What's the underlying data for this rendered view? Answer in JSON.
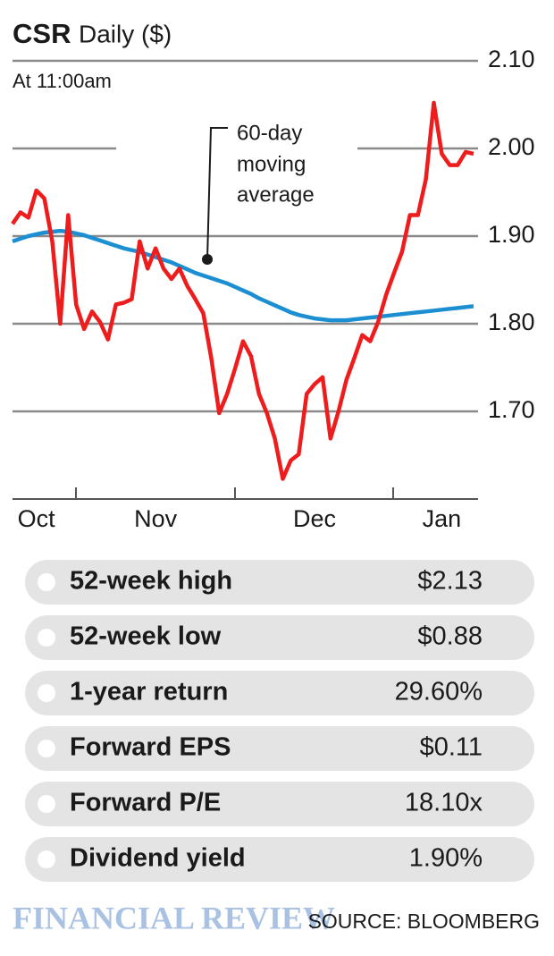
{
  "chart_data": {
    "type": "line",
    "title": "CSR",
    "title_suffix": "Daily ($)",
    "subtitle": "At 11:00am",
    "annotation": [
      "60-day",
      "moving",
      "average"
    ],
    "categories": [
      null,
      null,
      null,
      "Oct",
      null,
      null,
      null,
      null,
      null,
      null,
      null,
      null,
      null,
      null,
      null,
      null,
      null,
      null,
      "Nov",
      null,
      null,
      null,
      null,
      null,
      null,
      null,
      null,
      null,
      null,
      null,
      null,
      null,
      null,
      null,
      null,
      null,
      null,
      null,
      "Dec",
      null,
      null,
      null,
      null,
      null,
      null,
      null,
      null,
      null,
      null,
      null,
      null,
      null,
      null,
      null,
      "Jan",
      null,
      null,
      null,
      null
    ],
    "series": [
      {
        "color": "#ee1c1c",
        "values": [
          1.914,
          1.927,
          1.921,
          1.952,
          1.943,
          1.894,
          1.8,
          1.924,
          1.822,
          1.794,
          1.814,
          1.802,
          1.782,
          1.822,
          1.824,
          1.828,
          1.894,
          1.863,
          1.886,
          1.863,
          1.851,
          1.863,
          1.843,
          1.828,
          1.812,
          1.761,
          1.698,
          1.72,
          1.749,
          1.78,
          1.763,
          1.72,
          1.698,
          1.669,
          1.623,
          1.644,
          1.651,
          1.72,
          1.731,
          1.739,
          1.669,
          1.7,
          1.736,
          1.761,
          1.787,
          1.78,
          1.802,
          1.833,
          1.858,
          1.882,
          1.924,
          1.924,
          1.965,
          2.052,
          1.994,
          1.981,
          1.981,
          1.996,
          1.994
        ]
      },
      {
        "color": "#1b8fd2",
        "values": [
          1.894,
          1.897,
          1.9,
          1.902,
          1.904,
          1.905,
          1.906,
          1.905,
          1.903,
          1.901,
          1.898,
          1.895,
          1.892,
          1.889,
          1.886,
          1.884,
          1.882,
          1.879,
          1.876,
          1.873,
          1.87,
          1.866,
          1.862,
          1.858,
          1.855,
          1.852,
          1.849,
          1.846,
          1.842,
          1.838,
          1.834,
          1.829,
          1.825,
          1.821,
          1.817,
          1.813,
          1.81,
          1.808,
          1.806,
          1.805,
          1.804,
          1.804,
          1.804,
          1.805,
          1.806,
          1.807,
          1.808,
          1.809,
          1.81,
          1.811,
          1.812,
          1.813,
          1.814,
          1.815,
          1.816,
          1.817,
          1.818,
          1.819,
          1.82
        ]
      }
    ],
    "ylim": [
      1.6,
      2.1
    ],
    "yticks": [
      {
        "value": 2.1,
        "label": "2.10"
      },
      {
        "value": 2,
        "label": "2.00"
      },
      {
        "value": 1.9,
        "label": "1.90"
      },
      {
        "value": 1.8,
        "label": "1.80"
      },
      {
        "value": 1.7,
        "label": "1.70"
      }
    ],
    "grid": true
  },
  "stats": [
    [
      "52-week high",
      "$2.13"
    ],
    [
      "52-week low",
      "$0.88"
    ],
    [
      "1-year return",
      "29.60%"
    ],
    [
      "Forward EPS",
      "$0.11"
    ],
    [
      "Forward P/E",
      "18.10x"
    ],
    [
      "Dividend yield",
      "1.90%"
    ]
  ],
  "footer": {
    "brand": "FINANCIAL REVIEW",
    "source": "SOURCE: BLOOMBERG"
  }
}
